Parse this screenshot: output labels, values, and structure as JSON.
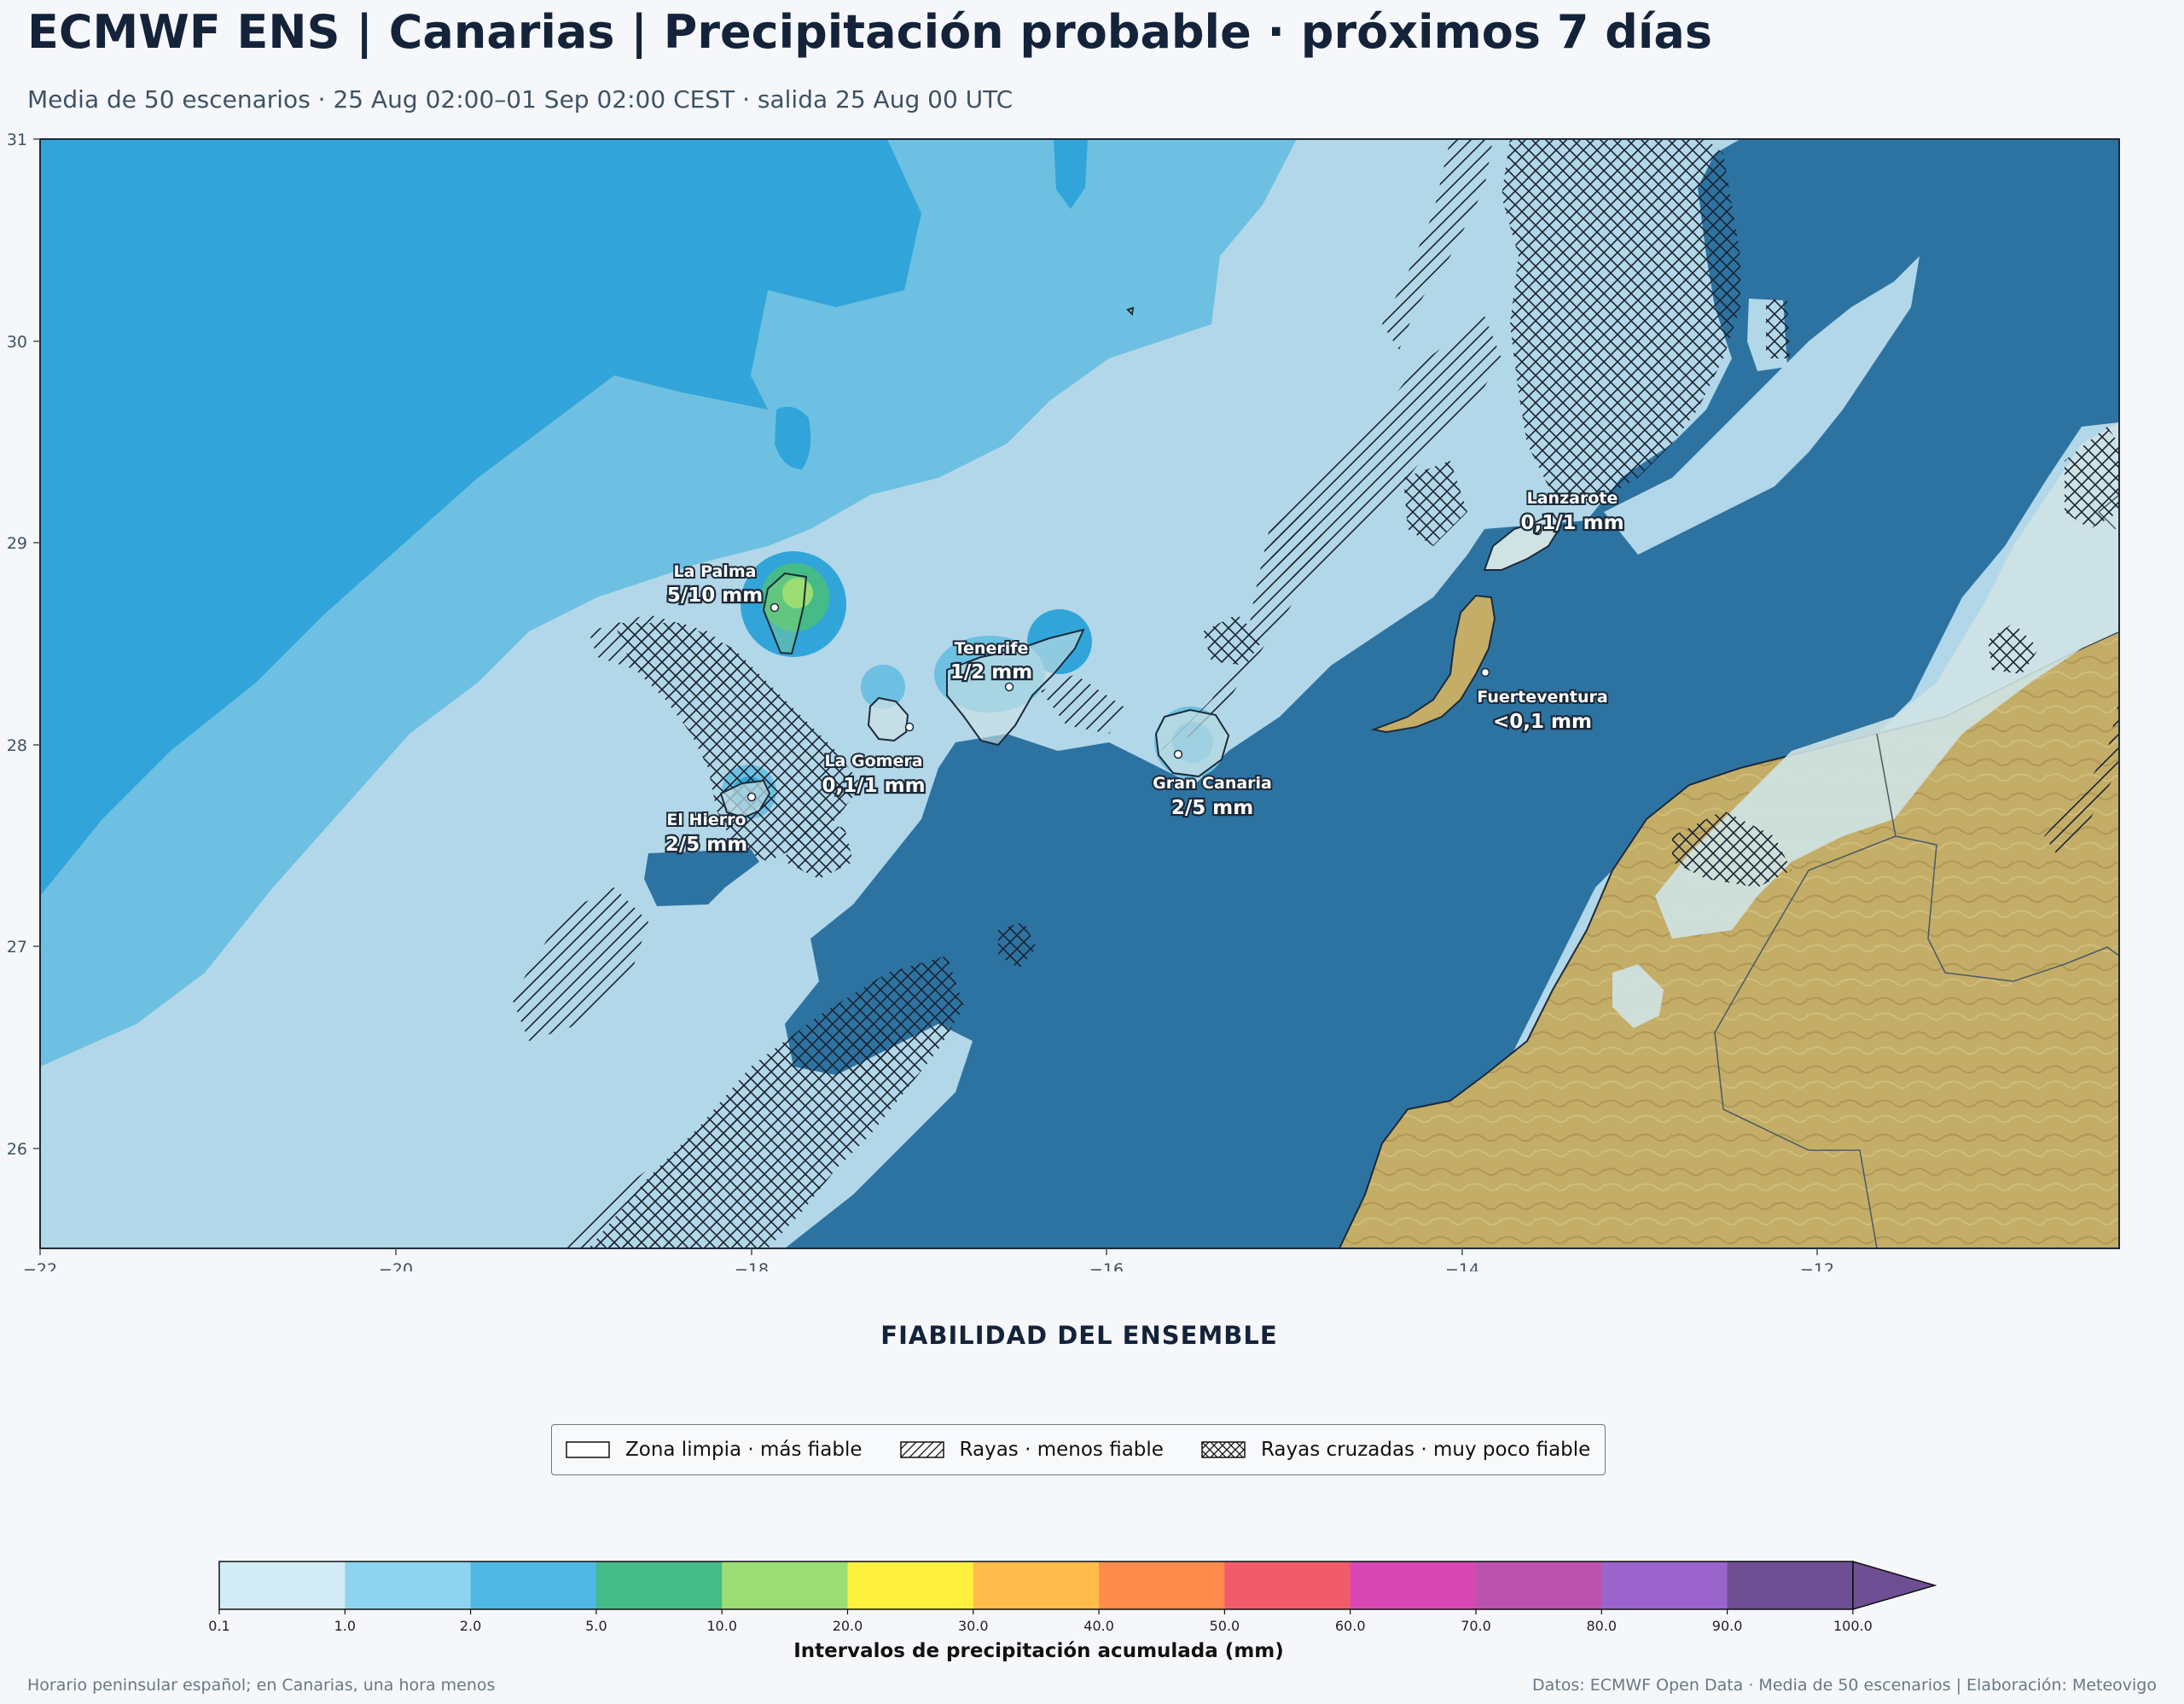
{
  "header": {
    "title": "ECMWF ENS | Canarias | Precipitación probable · próximos 7 días",
    "subtitle": "Media de 50 escenarios · 25 Aug 02:00–01 Sep 02:00 CEST · salida 25 Aug 00 UTC"
  },
  "map": {
    "lon_range": [
      -22,
      -10.3
    ],
    "lat_range": [
      25.5,
      31
    ],
    "x_ticks": [
      "−22",
      "−20",
      "−18",
      "−16",
      "−14",
      "−12"
    ],
    "y_ticks": [
      "31",
      "30",
      "29",
      "28",
      "27",
      "26"
    ],
    "islands": [
      {
        "name": "La Palma",
        "value": "5/10 mm"
      },
      {
        "name": "Tenerife",
        "value": "1/2 mm"
      },
      {
        "name": "La Gomera",
        "value": "0,1/1 mm"
      },
      {
        "name": "El Hierro",
        "value": "2/5 mm"
      },
      {
        "name": "Gran Canaria",
        "value": "2/5 mm"
      },
      {
        "name": "Lanzarote",
        "value": "0,1/1 mm"
      },
      {
        "name": "Fuerteventura",
        "value": "<0,1 mm"
      }
    ]
  },
  "reliability": {
    "title": "FIABILIDAD DEL ENSEMBLE",
    "items": [
      {
        "label": "Zona limpia · más fiable",
        "pattern": "none"
      },
      {
        "label": "Rayas · menos fiable",
        "pattern": "hatch"
      },
      {
        "label": "Rayas cruzadas · muy poco fiable",
        "pattern": "crosshatch"
      }
    ]
  },
  "colorbar": {
    "label": "Intervalos de precipitación acumulada (mm)",
    "ticks": [
      "0.1",
      "1.0",
      "2.0",
      "5.0",
      "10.0",
      "20.0",
      "30.0",
      "40.0",
      "50.0",
      "60.0",
      "70.0",
      "80.0",
      "90.0",
      "100.0"
    ],
    "colors": [
      "#d4ecf6",
      "#8fd4ef",
      "#4fb8e4",
      "#45bb88",
      "#9bdd73",
      "#fdf03e",
      "#ffbc4b",
      "#ff8c4c",
      "#f25b6a",
      "#d848b5",
      "#bd52ac",
      "#9a64cc",
      "#6f4f93"
    ],
    "extend_color": "#6f4f93"
  },
  "footer": {
    "left": "Horario peninsular español; en Canarias, una hora menos",
    "right": "Datos: ECMWF Open Data · Media de 50 escenarios | Elaboración: Meteovigo"
  }
}
